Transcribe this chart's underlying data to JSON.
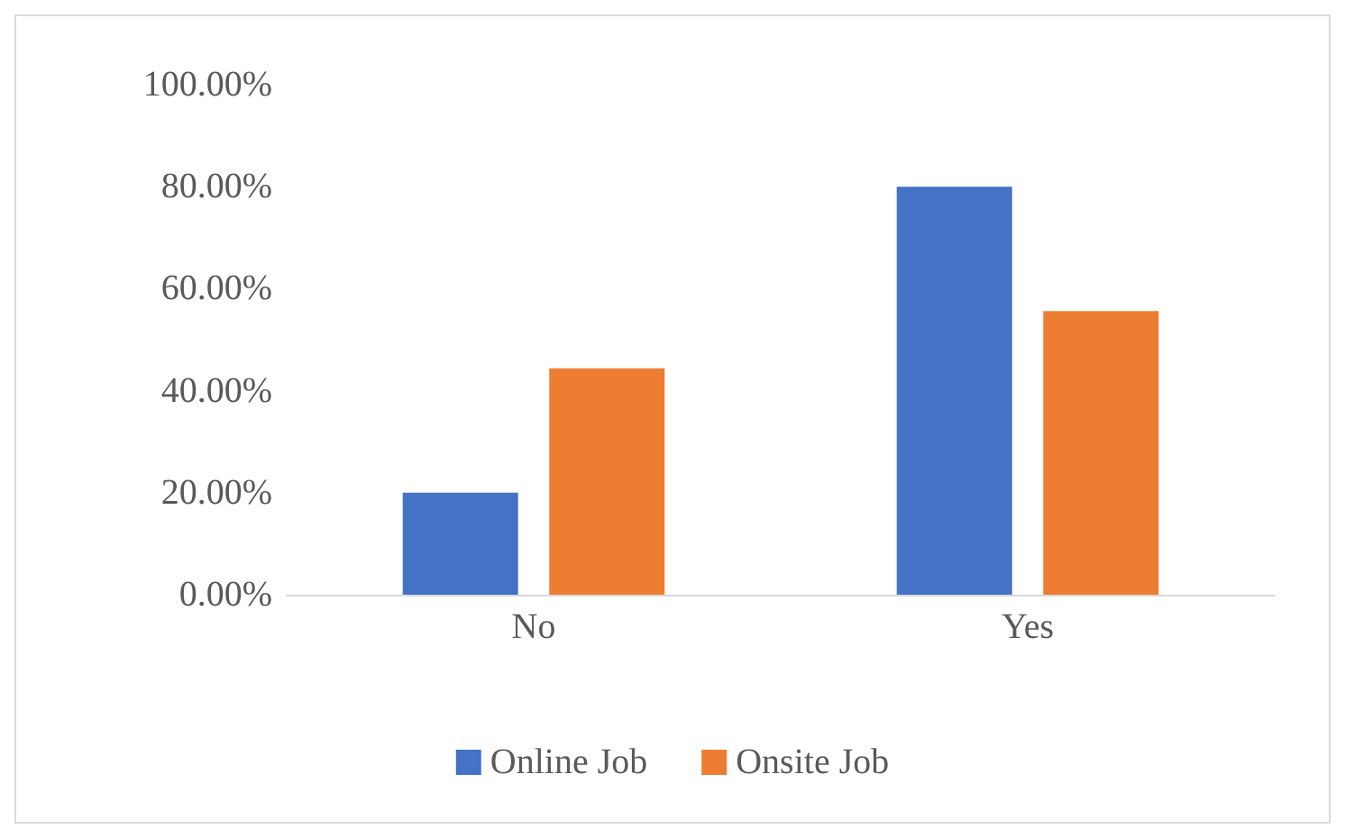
{
  "chart_data": {
    "type": "bar",
    "categories": [
      "No",
      "Yes"
    ],
    "series": [
      {
        "name": "Online Job",
        "color": "#4472c4",
        "values": [
          20,
          80
        ]
      },
      {
        "name": "Onsite Job",
        "color": "#ed7d31",
        "values": [
          44.4,
          55.6
        ]
      }
    ],
    "ylim": [
      0,
      100
    ],
    "yticks": [
      {
        "value": 0,
        "label": "0.00%"
      },
      {
        "value": 20,
        "label": "20.00%"
      },
      {
        "value": 40,
        "label": "40.00%"
      },
      {
        "value": 60,
        "label": "60.00%"
      },
      {
        "value": 80,
        "label": "80.00%"
      },
      {
        "value": 100,
        "label": "100.00%"
      }
    ],
    "grid": false,
    "legend": "bottom"
  }
}
